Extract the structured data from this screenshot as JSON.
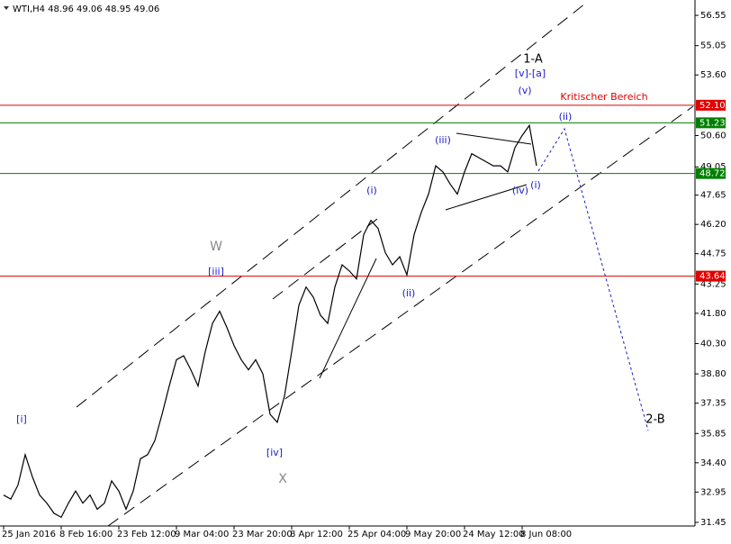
{
  "chart_data": {
    "type": "line",
    "title": "WTI,H4  48.96 49.06 48.95 49.06",
    "categories": [
      "25 Jan 2016",
      null,
      null,
      null,
      null,
      null,
      null,
      null,
      "8 Feb 16:00",
      null,
      null,
      null,
      null,
      null,
      null,
      null,
      "23 Feb 12:00",
      null,
      null,
      null,
      null,
      null,
      null,
      null,
      "9 Mar 04:00",
      null,
      null,
      null,
      null,
      null,
      null,
      null,
      "23 Mar 20:00",
      null,
      null,
      null,
      null,
      null,
      null,
      null,
      "8 Apr 12:00",
      null,
      null,
      null,
      null,
      null,
      null,
      null,
      "25 Apr 04:00",
      null,
      null,
      null,
      null,
      null,
      null,
      null,
      "9 May 20:00",
      null,
      null,
      null,
      null,
      null,
      null,
      null,
      "24 May 12:00",
      null,
      null,
      null,
      null,
      null,
      null,
      null,
      "8 Jun 08:00",
      null,
      null
    ],
    "values": [
      32.8,
      32.6,
      33.3,
      34.8,
      33.7,
      32.8,
      32.4,
      31.9,
      31.7,
      32.4,
      33.0,
      32.4,
      32.8,
      32.1,
      32.4,
      33.5,
      33.0,
      32.1,
      33.0,
      34.6,
      34.8,
      35.5,
      36.8,
      38.2,
      39.5,
      39.7,
      39.0,
      38.2,
      39.9,
      41.3,
      41.9,
      41.1,
      40.2,
      39.5,
      39.0,
      39.5,
      38.8,
      36.8,
      36.4,
      37.7,
      39.9,
      42.2,
      43.1,
      42.6,
      41.7,
      41.3,
      43.1,
      44.2,
      43.9,
      43.5,
      45.7,
      46.4,
      46.0,
      44.8,
      44.2,
      44.6,
      43.7,
      45.7,
      46.8,
      47.7,
      49.1,
      48.8,
      48.2,
      47.7,
      48.8,
      49.7,
      49.5,
      49.3,
      49.1,
      49.1,
      48.8,
      50.0,
      50.6,
      51.1,
      49.1
    ],
    "color": "#000000",
    "ylim": [
      31.27,
      57.31
    ],
    "yticks": [
      56.55,
      55.05,
      {
        "value": 53.6,
        "label": "53.60"
      },
      {
        "value": 50.6,
        "label": "50.60"
      },
      49.05,
      47.65,
      {
        "value": 46.2,
        "label": "46.20"
      },
      44.75,
      43.25,
      {
        "value": 41.8,
        "label": "41.80"
      },
      {
        "value": 40.3,
        "label": "40.30"
      },
      {
        "value": 38.8,
        "label": "38.80"
      },
      37.35,
      35.85,
      {
        "value": 34.4,
        "label": "34.40"
      },
      32.95,
      31.45
    ],
    "levels": [
      {
        "value": 52.1,
        "label": "52.10",
        "color": "#e00000"
      },
      {
        "value": 51.23,
        "color": "#008000"
      },
      {
        "value": 48.72,
        "color": "#008000"
      },
      {
        "value": 43.64,
        "color": "#e00000"
      }
    ],
    "annotations": [
      "1-A",
      "[v]-[a]",
      "(v)",
      "Kritischer Bereich",
      "(ii)",
      "(iii)",
      "(iv)",
      "(i)",
      "(i)",
      "W",
      "[iii]",
      "(ii)",
      "[i]",
      "[iv]",
      "X",
      "2-B"
    ],
    "grid": false
  }
}
